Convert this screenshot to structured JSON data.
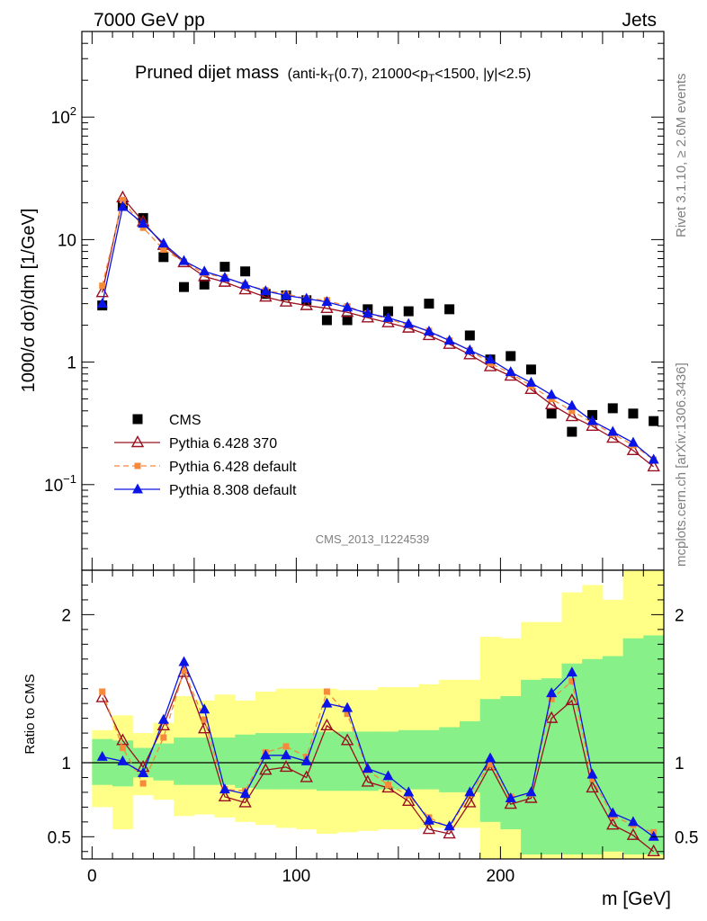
{
  "header": {
    "left": "7000 GeV pp",
    "right": "Jets"
  },
  "title": {
    "main": "Pruned dijet mass",
    "sub_prefix": "(anti-k",
    "sub_sub1": "T",
    "sub_mid1": "(0.7), 21000<p",
    "sub_sub2": "T",
    "sub_suffix": "<1500, |y|<2.5)"
  },
  "side_text": {
    "rivet": "Rivet 3.1.10, ≥ 2.6M events",
    "mcplots": "mcplots.cern.ch [arXiv:1306.3436]"
  },
  "watermark": "CMS_2013_I1224539",
  "colors": {
    "cms": "#000000",
    "py6_370": "#9a1020",
    "py6_def": "#f58a3a",
    "py8_def": "#0a14e6",
    "band_yellow": "#ffff88",
    "band_green": "#88f088"
  },
  "chart_data": [
    {
      "type": "scatter",
      "panel": "main",
      "ylabel": "1000/σ dσ)/dm [1/GeV]",
      "yscale": "log",
      "xlim": [
        -5,
        280
      ],
      "ylim": [
        0.02,
        500
      ],
      "yticks": [
        {
          "value": 0.1,
          "base": "10",
          "exp": "−1"
        },
        {
          "value": 1,
          "base": "1",
          "exp": ""
        },
        {
          "value": 10,
          "base": "10",
          "exp": ""
        },
        {
          "value": 100,
          "base": "10",
          "exp": "2"
        }
      ],
      "x": [
        5,
        15,
        25,
        35,
        45,
        55,
        65,
        75,
        85,
        95,
        105,
        115,
        125,
        135,
        145,
        155,
        165,
        175,
        185,
        195,
        205,
        215,
        225,
        235,
        245,
        255,
        265,
        275
      ],
      "series": [
        {
          "name": "CMS",
          "style": "square",
          "values": [
            2.9,
            19,
            15,
            7.2,
            4.1,
            4.3,
            6.0,
            5.5,
            3.6,
            3.5,
            3.2,
            2.2,
            2.2,
            2.7,
            2.6,
            2.6,
            3.0,
            2.7,
            1.65,
            1.05,
            1.12,
            0.87,
            0.38,
            0.27,
            0.37,
            0.42,
            0.38,
            0.33
          ]
        },
        {
          "name": "Pythia 6.428 370",
          "style": "open-triangle",
          "values": [
            3.7,
            22,
            14,
            9.0,
            6.5,
            5.0,
            4.5,
            3.9,
            3.4,
            3.1,
            2.9,
            2.75,
            2.55,
            2.3,
            2.1,
            1.9,
            1.65,
            1.4,
            1.15,
            0.92,
            0.77,
            0.6,
            0.45,
            0.36,
            0.3,
            0.24,
            0.19,
            0.14
          ]
        },
        {
          "name": "Pythia 6.428 default",
          "style": "small-square-dashed",
          "values": [
            4.2,
            21,
            12.5,
            8.3,
            6.6,
            5.3,
            4.9,
            4.3,
            3.85,
            3.6,
            3.3,
            3.2,
            2.85,
            2.5,
            2.25,
            2.0,
            1.8,
            1.5,
            1.25,
            0.98,
            0.81,
            0.64,
            0.5,
            0.4,
            0.32,
            0.26,
            0.21,
            0.16
          ]
        },
        {
          "name": "Pythia 8.308 default",
          "style": "solid-triangle",
          "values": [
            3.0,
            18.5,
            13.5,
            9.3,
            6.7,
            5.5,
            4.9,
            4.3,
            3.8,
            3.5,
            3.3,
            3.1,
            2.8,
            2.5,
            2.3,
            2.05,
            1.78,
            1.5,
            1.25,
            1.05,
            0.83,
            0.68,
            0.54,
            0.44,
            0.33,
            0.27,
            0.22,
            0.16
          ]
        }
      ]
    },
    {
      "type": "line",
      "panel": "ratio",
      "ylabel": "Ratio to CMS",
      "xlabel": "m [GeV]",
      "xlim": [
        -5,
        280
      ],
      "ylim": [
        0.35,
        2.3
      ],
      "xticks": [
        0,
        100,
        200
      ],
      "yticks": [
        0.5,
        1,
        2
      ],
      "x": [
        5,
        15,
        25,
        35,
        45,
        55,
        65,
        75,
        85,
        95,
        105,
        115,
        125,
        135,
        145,
        155,
        165,
        175,
        185,
        195,
        205,
        215,
        225,
        235,
        245,
        255,
        265,
        275
      ],
      "bands": {
        "yellow_low": [
          0.7,
          0.55,
          0.78,
          0.75,
          0.64,
          0.65,
          0.63,
          0.6,
          0.58,
          0.56,
          0.55,
          0.52,
          0.53,
          0.54,
          0.55,
          0.55,
          0.56,
          0.56,
          0.56,
          0.35,
          0.35,
          0.35,
          0.35,
          0.35,
          0.35,
          0.35,
          0.35,
          0.35
        ],
        "yellow_high": [
          1.22,
          1.32,
          1.2,
          1.27,
          1.45,
          1.42,
          1.46,
          1.42,
          1.48,
          1.5,
          1.5,
          1.5,
          1.49,
          1.49,
          1.51,
          1.51,
          1.53,
          1.56,
          1.56,
          1.85,
          1.84,
          1.95,
          1.95,
          2.15,
          2.2,
          2.1,
          2.3,
          2.3
        ],
        "green_low": [
          0.85,
          0.84,
          0.9,
          0.88,
          0.85,
          0.85,
          0.85,
          0.83,
          0.82,
          0.82,
          0.82,
          0.81,
          0.81,
          0.81,
          0.82,
          0.82,
          0.82,
          0.8,
          0.8,
          0.6,
          0.55,
          0.38,
          0.38,
          0.38,
          0.38,
          0.4,
          0.38,
          0.38
        ],
        "green_high": [
          1.16,
          1.15,
          1.1,
          1.13,
          1.17,
          1.17,
          1.17,
          1.19,
          1.2,
          1.2,
          1.2,
          1.21,
          1.21,
          1.21,
          1.21,
          1.22,
          1.22,
          1.24,
          1.28,
          1.43,
          1.45,
          1.56,
          1.57,
          1.67,
          1.7,
          1.72,
          1.84,
          1.86
        ]
      },
      "series": [
        {
          "name": "Pythia 6.428 370",
          "style": "open-triangle",
          "values": [
            1.44,
            1.15,
            0.97,
            1.25,
            1.61,
            1.23,
            0.77,
            0.73,
            0.95,
            0.97,
            0.9,
            1.25,
            1.15,
            0.87,
            0.83,
            0.74,
            0.55,
            0.52,
            0.73,
            0.98,
            0.72,
            0.76,
            1.3,
            1.42,
            0.83,
            0.58,
            0.51,
            0.4
          ]
        },
        {
          "name": "Pythia 6.428 default",
          "style": "small-square-dashed",
          "values": [
            1.48,
            1.1,
            0.86,
            1.17,
            1.62,
            1.29,
            0.82,
            0.81,
            1.07,
            1.11,
            1.04,
            1.48,
            1.33,
            0.95,
            0.85,
            0.78,
            0.63,
            0.56,
            0.79,
            0.99,
            0.77,
            0.79,
            1.43,
            1.55,
            0.89,
            0.64,
            0.58,
            0.53
          ]
        },
        {
          "name": "Pythia 8.308 default",
          "style": "solid-triangle",
          "values": [
            1.04,
            1.01,
            0.93,
            1.29,
            1.68,
            1.36,
            0.82,
            0.79,
            1.05,
            1.05,
            1.01,
            1.4,
            1.37,
            0.96,
            0.91,
            0.8,
            0.61,
            0.57,
            0.8,
            1.03,
            0.76,
            0.8,
            1.47,
            1.61,
            0.92,
            0.66,
            0.6,
            0.5
          ]
        }
      ]
    }
  ]
}
